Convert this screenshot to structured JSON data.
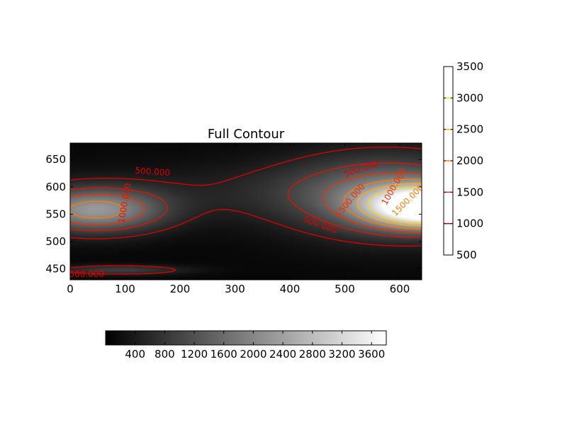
{
  "chart_data": {
    "type": "heatmap",
    "title": "Full Contour",
    "xlabel": "",
    "ylabel": "",
    "xlim": [
      0,
      640
    ],
    "ylim": [
      430,
      680
    ],
    "x_ticks": [
      0,
      100,
      200,
      300,
      400,
      500,
      600
    ],
    "y_ticks": [
      450,
      500,
      550,
      600,
      650
    ],
    "image_colorbar": {
      "orientation": "horizontal",
      "colormap": "gray",
      "range": [
        0,
        3800
      ],
      "ticks": [
        400,
        800,
        1200,
        1600,
        2000,
        2400,
        2800,
        3200,
        3600
      ],
      "tick_labels": [
        "400",
        "800",
        "1200",
        "1600",
        "2000",
        "2400",
        "2800",
        "3200",
        "3600"
      ]
    },
    "contour_colorbar": {
      "orientation": "vertical",
      "range": [
        500,
        3500
      ],
      "ticks": [
        500,
        1000,
        1500,
        2000,
        2500,
        3000,
        3500
      ],
      "tick_labels": [
        "500",
        "1000",
        "1500",
        "2000",
        "2500",
        "3000",
        "3500"
      ],
      "line_levels": [
        1000,
        1500,
        2000,
        2500,
        3000
      ],
      "line_colors": [
        "#e00000",
        "#f03000",
        "#ff7a00",
        "#ffb000",
        "#ffd800"
      ]
    },
    "contour_levels": [
      500,
      1000,
      1500,
      2000,
      2500,
      3000
    ],
    "contour_label_texts": [
      "500.000",
      "500.000",
      "500.000",
      "1000.000",
      "1000.000",
      "1500.000",
      "1500.000",
      "500.000"
    ],
    "grid": false
  }
}
